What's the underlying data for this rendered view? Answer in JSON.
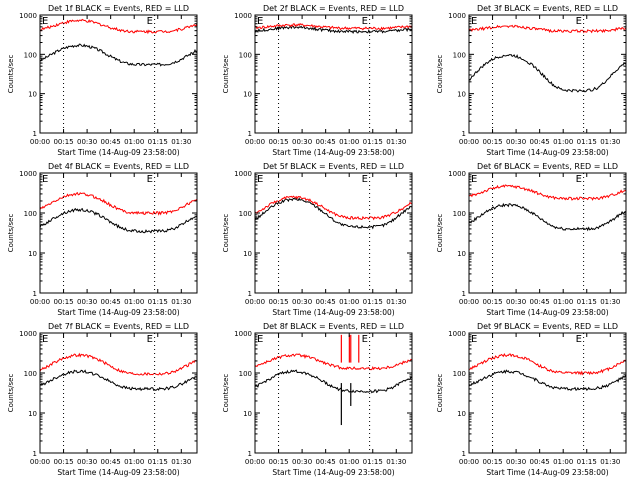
{
  "chart_data": [
    {
      "type": "line",
      "title": "Det 1f BLACK = Events, RED = LLD",
      "xlabel": "Start Time (14-Aug-09 23:58:00)",
      "ylabel": "Counts/sec",
      "yscale": "log",
      "ylim": [
        1,
        1000
      ],
      "yticks": [
        "1",
        "10",
        "100",
        "1000"
      ],
      "xticks": [
        "00:00",
        "00:15",
        "00:30",
        "00:45",
        "01:00",
        "01:15",
        "01:30"
      ],
      "markers": [
        "E",
        "E"
      ],
      "vlines": [
        "00:15",
        "01:13"
      ],
      "series": [
        {
          "color": "#000000",
          "base": 55,
          "peak": 170
        },
        {
          "color": "#ff0000",
          "base": 380,
          "peak": 720
        }
      ]
    },
    {
      "type": "line",
      "title": "Det 2f BLACK = Events, RED = LLD",
      "xlabel": "Start Time (14-Aug-09 23:58:00)",
      "ylabel": "Counts/sec",
      "yscale": "log",
      "ylim": [
        1,
        1000
      ],
      "yticks": [
        "1",
        "10",
        "100",
        "1000"
      ],
      "xticks": [
        "00:00",
        "00:15",
        "00:30",
        "00:45",
        "01:00",
        "01:15",
        "01:30"
      ],
      "markers": [
        "E",
        "E"
      ],
      "vlines": [
        "00:15",
        "01:13"
      ],
      "series": [
        {
          "color": "#000000",
          "base": 380,
          "peak": 490
        },
        {
          "color": "#ff0000",
          "base": 460,
          "peak": 560
        }
      ]
    },
    {
      "type": "line",
      "title": "Det 3f BLACK = Events, RED = LLD",
      "xlabel": "Start Time (14-Aug-09 23:58:00)",
      "ylabel": "Counts/sec",
      "yscale": "log",
      "ylim": [
        1,
        1000
      ],
      "yticks": [
        "1",
        "10",
        "100",
        "1000"
      ],
      "xticks": [
        "00:00",
        "00:15",
        "00:30",
        "00:45",
        "01:00",
        "01:15",
        "01:30"
      ],
      "markers": [
        "E",
        "E"
      ],
      "vlines": [
        "00:15",
        "01:13"
      ],
      "series": [
        {
          "color": "#000000",
          "base": 12,
          "peak": 95
        },
        {
          "color": "#ff0000",
          "base": 390,
          "peak": 520
        }
      ]
    },
    {
      "type": "line",
      "title": "Det 4f BLACK = Events, RED = LLD",
      "xlabel": "Start Time (14-Aug-09 23:58:00)",
      "ylabel": "Counts/sec",
      "yscale": "log",
      "ylim": [
        1,
        1000
      ],
      "yticks": [
        "1",
        "10",
        "100",
        "1000"
      ],
      "xticks": [
        "00:00",
        "00:15",
        "00:30",
        "00:45",
        "01:00",
        "01:15",
        "01:30"
      ],
      "markers": [
        "E",
        "E"
      ],
      "vlines": [
        "00:15",
        "01:13"
      ],
      "series": [
        {
          "color": "#000000",
          "base": 35,
          "peak": 120
        },
        {
          "color": "#ff0000",
          "base": 100,
          "peak": 300
        }
      ]
    },
    {
      "type": "line",
      "title": "Det 5f BLACK = Events, RED = LLD",
      "xlabel": "Start Time (14-Aug-09 23:58:00)",
      "ylabel": "Counts/sec",
      "yscale": "log",
      "ylim": [
        1,
        1000
      ],
      "yticks": [
        "1",
        "10",
        "100",
        "1000"
      ],
      "xticks": [
        "00:00",
        "00:15",
        "00:30",
        "00:45",
        "01:00",
        "01:15",
        "01:30"
      ],
      "markers": [
        "E",
        "E"
      ],
      "vlines": [
        "00:15",
        "01:13"
      ],
      "series": [
        {
          "color": "#000000",
          "base": 45,
          "peak": 220
        },
        {
          "color": "#ff0000",
          "base": 75,
          "peak": 250
        }
      ]
    },
    {
      "type": "line",
      "title": "Det 6f BLACK = Events, RED = LLD",
      "xlabel": "Start Time (14-Aug-09 23:58:00)",
      "ylabel": "Counts/sec",
      "yscale": "log",
      "ylim": [
        1,
        1000
      ],
      "yticks": [
        "1",
        "10",
        "100",
        "1000"
      ],
      "xticks": [
        "00:00",
        "00:15",
        "00:30",
        "00:45",
        "01:00",
        "01:15",
        "01:30"
      ],
      "markers": [
        "E",
        "E"
      ],
      "vlines": [
        "00:15",
        "01:13"
      ],
      "series": [
        {
          "color": "#000000",
          "base": 40,
          "peak": 160
        },
        {
          "color": "#ff0000",
          "base": 230,
          "peak": 470
        }
      ]
    },
    {
      "type": "line",
      "title": "Det 7f BLACK = Events, RED = LLD",
      "xlabel": "Start Time (14-Aug-09 23:58:00)",
      "ylabel": "Counts/sec",
      "yscale": "log",
      "ylim": [
        1,
        1000
      ],
      "yticks": [
        "1",
        "10",
        "100",
        "1000"
      ],
      "xticks": [
        "00:00",
        "00:15",
        "00:30",
        "00:45",
        "01:00",
        "01:15",
        "01:30"
      ],
      "markers": [
        "E",
        "E"
      ],
      "vlines": [
        "00:15",
        "01:13"
      ],
      "series": [
        {
          "color": "#000000",
          "base": 40,
          "peak": 110
        },
        {
          "color": "#ff0000",
          "base": 95,
          "peak": 280
        }
      ]
    },
    {
      "type": "line",
      "title": "Det 8f BLACK = Events, RED = LLD",
      "xlabel": "Start Time (14-Aug-09 23:58:00)",
      "ylabel": "Counts/sec",
      "yscale": "log",
      "ylim": [
        1,
        1000
      ],
      "yticks": [
        "1",
        "10",
        "100",
        "1000"
      ],
      "xticks": [
        "00:00",
        "00:15",
        "00:30",
        "00:45",
        "01:00",
        "01:15",
        "01:30"
      ],
      "markers": [
        "E",
        "E"
      ],
      "vlines": [
        "00:15",
        "01:13"
      ],
      "spikes": [
        {
          "x_min": 55,
          "red_to": 900,
          "black_to": 5
        },
        {
          "x_min": 61,
          "red_to": 900,
          "black_to": 15
        }
      ],
      "series": [
        {
          "color": "#000000",
          "base": 35,
          "peak": 110
        },
        {
          "color": "#ff0000",
          "base": 130,
          "peak": 280
        }
      ]
    },
    {
      "type": "line",
      "title": "Det 9f BLACK = Events, RED = LLD",
      "xlabel": "Start Time (14-Aug-09 23:58:00)",
      "ylabel": "Counts/sec",
      "yscale": "log",
      "ylim": [
        1,
        1000
      ],
      "yticks": [
        "1",
        "10",
        "100",
        "1000"
      ],
      "xticks": [
        "00:00",
        "00:15",
        "00:30",
        "00:45",
        "01:00",
        "01:15",
        "01:30"
      ],
      "markers": [
        "E",
        "E"
      ],
      "vlines": [
        "00:15",
        "01:13"
      ],
      "series": [
        {
          "color": "#000000",
          "base": 40,
          "peak": 110
        },
        {
          "color": "#ff0000",
          "base": 100,
          "peak": 280
        }
      ]
    }
  ]
}
